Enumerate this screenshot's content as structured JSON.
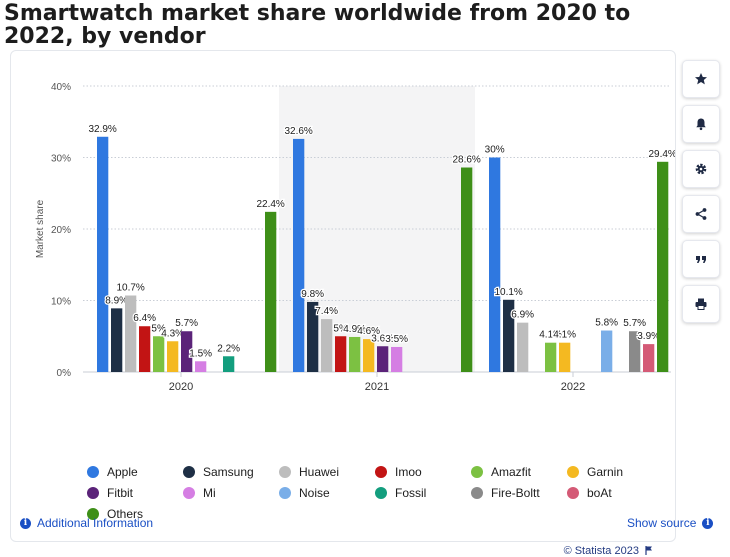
{
  "title": "Smartwatch market share worldwide from 2020 to 2022, by vendor",
  "colors": {
    "Apple": "#2f78e0",
    "Samsung": "#1e2f45",
    "Huawei": "#bdbdbd",
    "Imoo": "#c21414",
    "Amazfit": "#7cc142",
    "Garnin": "#f4b921",
    "Fitbit": "#5b2379",
    "Mi": "#d57ee3",
    "Noise": "#7aaee8",
    "Fossil": "#139e7e",
    "Fire-Boltt": "#8a8a8a",
    "boAt": "#d45a76",
    "Others": "#3e8f18"
  },
  "chart_data": {
    "type": "bar",
    "title": "Smartwatch market share worldwide from 2020 to 2022, by vendor",
    "ylabel": "Market share",
    "xlabel": "",
    "ylim": [
      0,
      40
    ],
    "yticks": [
      0,
      10,
      20,
      30,
      40
    ],
    "ytick_labels": [
      "0%",
      "10%",
      "20%",
      "30%",
      "40%"
    ],
    "categories": [
      "2020",
      "2021",
      "2022"
    ],
    "grid": true,
    "legend_position": "bottom",
    "series": [
      {
        "name": "Apple",
        "values": [
          32.9,
          32.6,
          30
        ],
        "labels": [
          "32.9%",
          "32.6%",
          "30%"
        ]
      },
      {
        "name": "Samsung",
        "values": [
          8.9,
          9.8,
          10.1
        ],
        "labels": [
          "8.9%",
          "9.8%",
          "10.1%"
        ]
      },
      {
        "name": "Huawei",
        "values": [
          10.7,
          7.4,
          6.9
        ],
        "labels": [
          "10.7%",
          "7.4%",
          "6.9%"
        ]
      },
      {
        "name": "Imoo",
        "values": [
          6.4,
          5,
          null
        ],
        "labels": [
          "6.4%",
          "5%",
          ""
        ]
      },
      {
        "name": "Amazfit",
        "values": [
          5,
          4.9,
          4.1
        ],
        "labels": [
          "5%",
          "4.9%",
          "4.1%"
        ]
      },
      {
        "name": "Garnin",
        "values": [
          4.3,
          4.6,
          4.1
        ],
        "labels": [
          "4.3%",
          "4.6%",
          "4.1%"
        ]
      },
      {
        "name": "Fitbit",
        "values": [
          5.7,
          3.6,
          null
        ],
        "labels": [
          "5.7%",
          "3.6%",
          ""
        ]
      },
      {
        "name": "Mi",
        "values": [
          1.5,
          3.5,
          null
        ],
        "labels": [
          "1.5%",
          "3.5%",
          ""
        ]
      },
      {
        "name": "Noise",
        "values": [
          null,
          null,
          5.8
        ],
        "labels": [
          "",
          "",
          "5.8%"
        ]
      },
      {
        "name": "Fossil",
        "values": [
          2.2,
          null,
          null
        ],
        "labels": [
          "2.2%",
          "",
          ""
        ]
      },
      {
        "name": "Fire-Boltt",
        "values": [
          null,
          null,
          5.7
        ],
        "labels": [
          "",
          "",
          "5.7%"
        ]
      },
      {
        "name": "boAt",
        "values": [
          null,
          null,
          3.9
        ],
        "labels": [
          "",
          "",
          "3.9%"
        ]
      },
      {
        "name": "Others",
        "values": [
          22.4,
          28.6,
          29.4
        ],
        "labels": [
          "22.4%",
          "28.6%",
          "29.4%"
        ]
      }
    ],
    "highlighted_category": "2021"
  },
  "source": "© Statista 2023",
  "footer": {
    "additional_info": "Additional Information",
    "show_source": "Show source"
  },
  "toolbar": [
    {
      "name": "favorite",
      "icon": "star-icon"
    },
    {
      "name": "notify",
      "icon": "bell-icon"
    },
    {
      "name": "settings",
      "icon": "gear-icon"
    },
    {
      "name": "share",
      "icon": "share-icon"
    },
    {
      "name": "cite",
      "icon": "quote-icon"
    },
    {
      "name": "print",
      "icon": "printer-icon"
    }
  ]
}
